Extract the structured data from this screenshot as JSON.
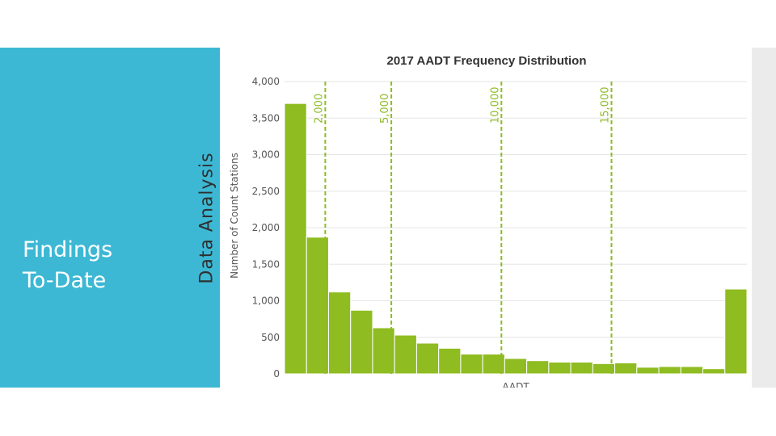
{
  "slide": {
    "title_line1": "Findings",
    "title_line2": "To-Date",
    "section_label": "Data Analysis"
  },
  "colors": {
    "panel": "#3db8d4",
    "bar": "#8fbc20",
    "reference": "#8dbb24"
  },
  "chart_data": {
    "type": "bar",
    "title": "2017 AADT Frequency Distribution",
    "xlabel": "AADT",
    "ylabel": "Number of Count Stations",
    "ylim": [
      0,
      4000
    ],
    "yticks": [
      0,
      500,
      1000,
      1500,
      2000,
      2500,
      3000,
      3500,
      4000
    ],
    "ytick_labels": [
      "0",
      "500",
      "1,000",
      "1,500",
      "2,000",
      "2,500",
      "3,000",
      "3,500",
      "4,000"
    ],
    "grid": true,
    "bin_count": 21,
    "values": [
      3700,
      1870,
      1120,
      870,
      630,
      530,
      420,
      350,
      270,
      270,
      210,
      180,
      160,
      160,
      140,
      150,
      90,
      100,
      100,
      70,
      1160
    ],
    "reference_lines": [
      {
        "label": "2,000",
        "position_bin": 1.85
      },
      {
        "label": "5,000",
        "position_bin": 4.85
      },
      {
        "label": "10,000",
        "position_bin": 9.85
      },
      {
        "label": "15,000",
        "position_bin": 14.85
      }
    ]
  }
}
